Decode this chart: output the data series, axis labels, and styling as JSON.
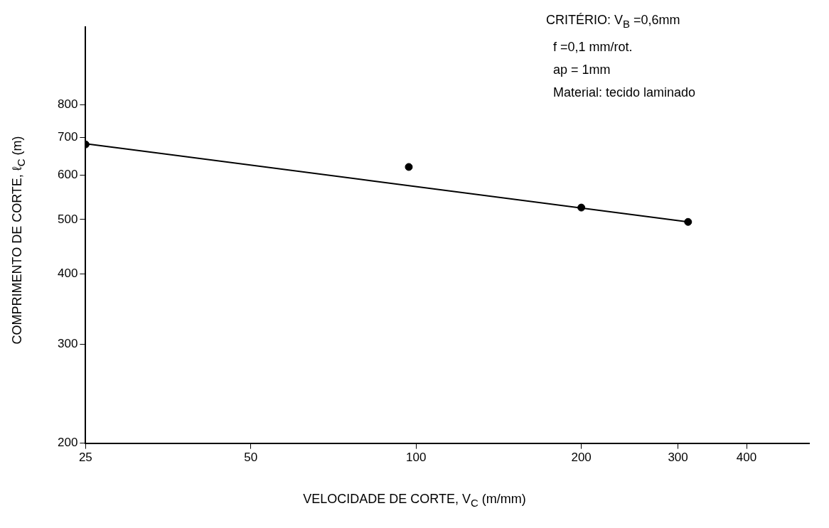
{
  "chart_data": {
    "type": "scatter",
    "xlabel": "VELOCIDADE DE CORTE, V$_{C}$ (m/mm)",
    "ylabel": "COMPRIMENTO DE CORTE, ℓ$_{C}$ (m)",
    "annotations": [
      "CRITÉRIO: V$_{B}$ =0,6mm",
      "f =0,1 mm/rot.",
      "ap = 1mm",
      "Material: tecido laminado"
    ],
    "series": [
      {
        "x": [
          25,
          97,
          200,
          313
        ],
        "values": [
          680,
          620,
          525,
          495
        ],
        "color": "#000000",
        "marker": "circle"
      },
      {
        "type": "line",
        "x": [
          25,
          313
        ],
        "values": [
          682,
          495
        ],
        "color": "#000000",
        "marker": "none",
        "line_style": "solid"
      }
    ],
    "log": "xy",
    "xlim": [
      25,
      520
    ],
    "xticks": [
      25,
      50,
      100,
      200,
      300,
      400
    ],
    "ylim": [
      200,
      1100
    ],
    "yticks": [
      200,
      300,
      400,
      500,
      600,
      700,
      800
    ],
    "grid": false,
    "legend": false
  }
}
